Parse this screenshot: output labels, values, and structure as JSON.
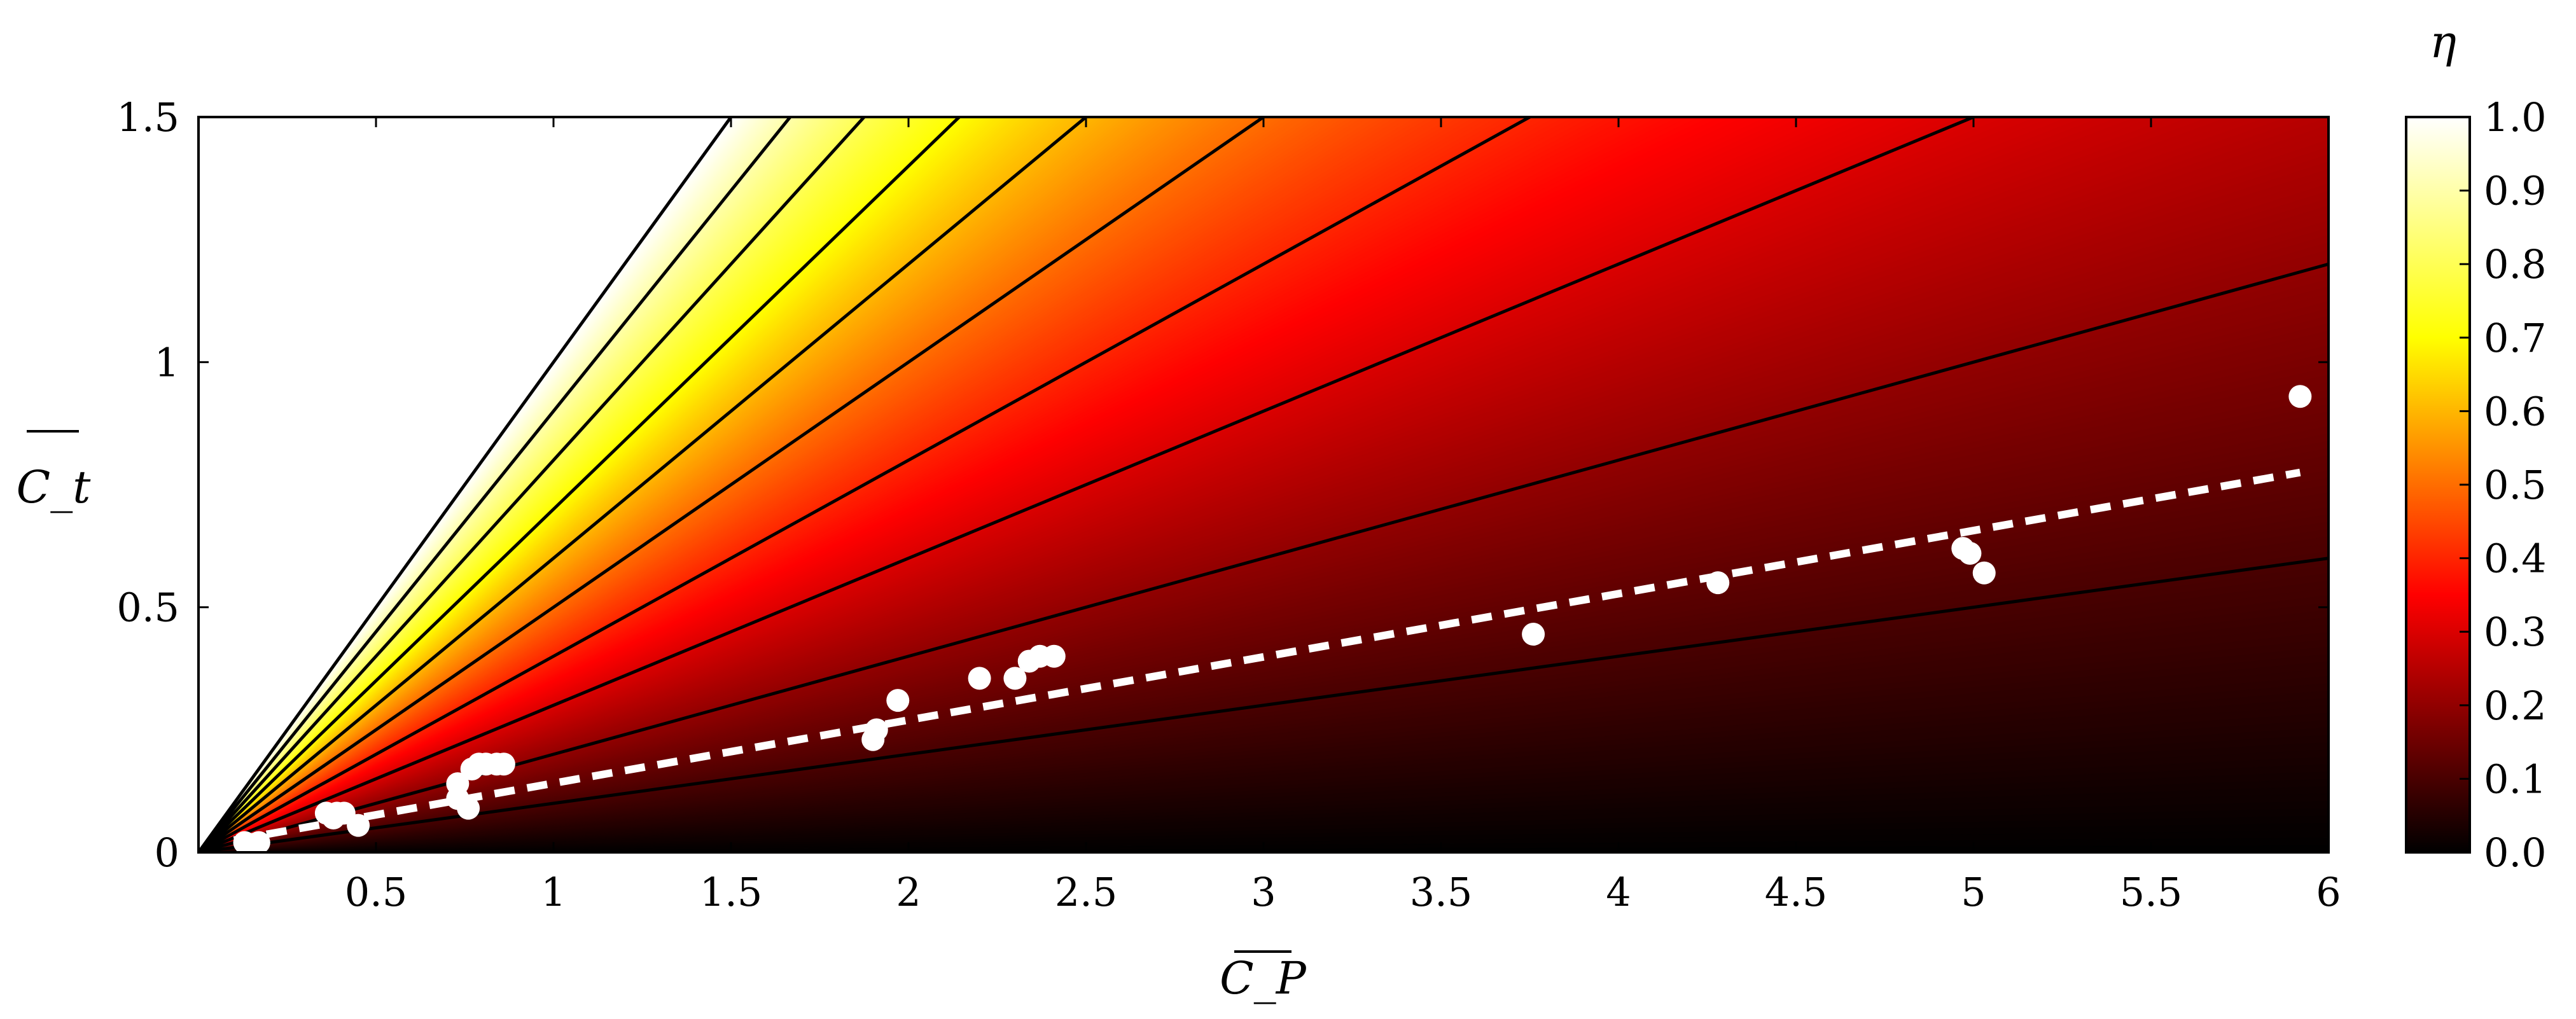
{
  "chart_data": {
    "type": "scatter",
    "background": "heatmap",
    "xlabel": "C_P",
    "ylabel": "C_t",
    "xlim": [
      0,
      6
    ],
    "ylim": [
      0,
      1.5
    ],
    "x_ticks": [
      {
        "value": 0.5,
        "label": "0.5"
      },
      {
        "value": 1,
        "label": "1"
      },
      {
        "value": 1.5,
        "label": "1.5"
      },
      {
        "value": 2,
        "label": "2"
      },
      {
        "value": 2.5,
        "label": "2.5"
      },
      {
        "value": 3,
        "label": "3"
      },
      {
        "value": 3.5,
        "label": "3.5"
      },
      {
        "value": 4,
        "label": "4"
      },
      {
        "value": 4.5,
        "label": "4.5"
      },
      {
        "value": 5,
        "label": "5"
      },
      {
        "value": 5.5,
        "label": "5.5"
      },
      {
        "value": 6,
        "label": "6"
      }
    ],
    "y_ticks": [
      {
        "value": 0,
        "label": "0"
      },
      {
        "value": 0.5,
        "label": "0.5"
      },
      {
        "value": 1,
        "label": "1"
      },
      {
        "value": 1.5,
        "label": "1.5"
      }
    ],
    "colorbar": {
      "label": "η",
      "range": [
        0,
        1
      ],
      "ticks": [
        "0.0",
        "0.1",
        "0.2",
        "0.3",
        "0.4",
        "0.5",
        "0.6",
        "0.7",
        "0.8",
        "0.9",
        "1.0"
      ],
      "colormap": [
        {
          "v": 0.0,
          "color": "#000000"
        },
        {
          "v": 0.35,
          "color": "#ff0000"
        },
        {
          "v": 0.7,
          "color": "#ffff00"
        },
        {
          "v": 1.0,
          "color": "#ffffff"
        }
      ]
    },
    "contour_slopes": [
      0.1,
      0.2,
      0.3,
      0.4,
      0.5,
      0.6,
      0.7,
      0.8,
      0.9,
      1.0
    ],
    "fit_line": {
      "x": [
        0.1,
        5.92
      ],
      "y": [
        0.025,
        0.775
      ],
      "color": "#ffffff",
      "style": "dashed"
    },
    "points": [
      {
        "x": 0.13,
        "y": 0.02
      },
      {
        "x": 0.17,
        "y": 0.02
      },
      {
        "x": 0.36,
        "y": 0.08
      },
      {
        "x": 0.38,
        "y": 0.07
      },
      {
        "x": 0.39,
        "y": 0.08
      },
      {
        "x": 0.41,
        "y": 0.08
      },
      {
        "x": 0.45,
        "y": 0.055
      },
      {
        "x": 0.73,
        "y": 0.11
      },
      {
        "x": 0.73,
        "y": 0.14
      },
      {
        "x": 0.76,
        "y": 0.09
      },
      {
        "x": 0.77,
        "y": 0.17
      },
      {
        "x": 0.79,
        "y": 0.18
      },
      {
        "x": 0.81,
        "y": 0.18
      },
      {
        "x": 0.84,
        "y": 0.18
      },
      {
        "x": 0.86,
        "y": 0.18
      },
      {
        "x": 1.9,
        "y": 0.23
      },
      {
        "x": 1.91,
        "y": 0.25
      },
      {
        "x": 1.97,
        "y": 0.31
      },
      {
        "x": 2.2,
        "y": 0.355
      },
      {
        "x": 2.3,
        "y": 0.355
      },
      {
        "x": 2.34,
        "y": 0.39
      },
      {
        "x": 2.37,
        "y": 0.4
      },
      {
        "x": 2.41,
        "y": 0.4
      },
      {
        "x": 3.76,
        "y": 0.445
      },
      {
        "x": 4.28,
        "y": 0.55
      },
      {
        "x": 4.97,
        "y": 0.62
      },
      {
        "x": 4.99,
        "y": 0.61
      },
      {
        "x": 5.03,
        "y": 0.57
      },
      {
        "x": 5.92,
        "y": 0.93
      }
    ]
  }
}
